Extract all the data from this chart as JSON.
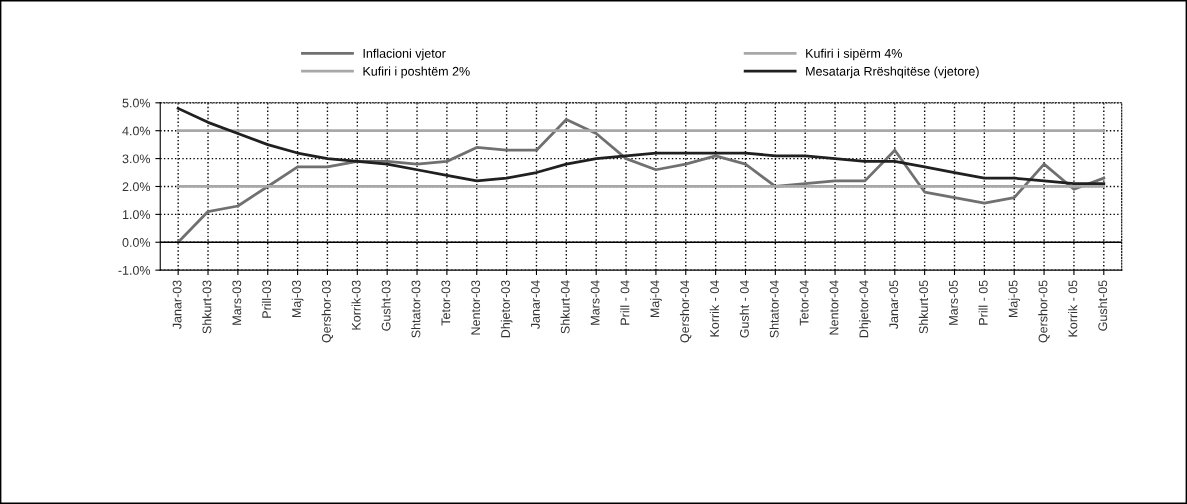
{
  "chart_data": {
    "type": "line",
    "categories": [
      "Janar-03",
      "Shkurt-03",
      "Mars-03",
      "Prill-03",
      "Maj-03",
      "Qershor-03",
      "Korrik-03",
      "Gusht-03",
      "Shtator-03",
      "Tetor-03",
      "Nentor-03",
      "Dhjetor-03",
      "Janar-04",
      "Shkurt-04",
      "Mars-04",
      "Prill - 04",
      "Maj-04",
      "Qershor-04",
      "Korrik - 04",
      "Gusht - 04",
      "Shtator-04",
      "Tetor-04",
      "Nentor-04",
      "Dhjetor-04",
      "Janar-05",
      "Shkurt-05",
      "Mars-05",
      "Prill - 05",
      "Maj-05",
      "Qershor-05",
      "Korrik - 05",
      "Gusht-05"
    ],
    "series": [
      {
        "name": "Inflacioni vjetor",
        "color": "#707070",
        "values": [
          0.0,
          1.1,
          1.3,
          2.0,
          2.7,
          2.7,
          2.9,
          2.9,
          2.8,
          2.9,
          3.4,
          3.3,
          3.3,
          4.4,
          3.9,
          3.0,
          2.6,
          2.8,
          3.1,
          2.8,
          2.0,
          2.1,
          2.2,
          2.2,
          3.3,
          1.8,
          1.6,
          1.4,
          1.6,
          2.8,
          1.9,
          2.3
        ]
      },
      {
        "name": "Kufiri i sipërm 4%",
        "color": "#a8a8a8",
        "values": [
          4,
          4,
          4,
          4,
          4,
          4,
          4,
          4,
          4,
          4,
          4,
          4,
          4,
          4,
          4,
          4,
          4,
          4,
          4,
          4,
          4,
          4,
          4,
          4,
          4,
          4,
          4,
          4,
          4,
          4,
          4,
          4
        ]
      },
      {
        "name": "Kufiri i poshtëm 2%",
        "color": "#a8a8a8",
        "values": [
          2,
          2,
          2,
          2,
          2,
          2,
          2,
          2,
          2,
          2,
          2,
          2,
          2,
          2,
          2,
          2,
          2,
          2,
          2,
          2,
          2,
          2,
          2,
          2,
          2,
          2,
          2,
          2,
          2,
          2,
          2,
          2
        ]
      },
      {
        "name": "Mesatarja Rrëshqitëse (vjetore)",
        "color": "#202020",
        "values": [
          4.8,
          4.3,
          3.9,
          3.5,
          3.2,
          3.0,
          2.9,
          2.8,
          2.6,
          2.4,
          2.2,
          2.3,
          2.5,
          2.8,
          3.0,
          3.1,
          3.2,
          3.2,
          3.2,
          3.2,
          3.1,
          3.1,
          3.0,
          2.9,
          2.9,
          2.7,
          2.5,
          2.3,
          2.3,
          2.2,
          2.1,
          2.1
        ]
      }
    ],
    "ylim": [
      -1,
      5
    ],
    "yticks": [
      {
        "value": -1,
        "label": "-1.0%"
      },
      {
        "value": 0,
        "label": "0.0%"
      },
      {
        "value": 1,
        "label": "1.0%"
      },
      {
        "value": 2,
        "label": "2.0%"
      },
      {
        "value": 3,
        "label": "3.0%"
      },
      {
        "value": 4,
        "label": "4.0%"
      },
      {
        "value": 5,
        "label": "5.0%"
      }
    ],
    "grid": true,
    "legend": "top",
    "marker": "none",
    "line_style": "solid"
  }
}
